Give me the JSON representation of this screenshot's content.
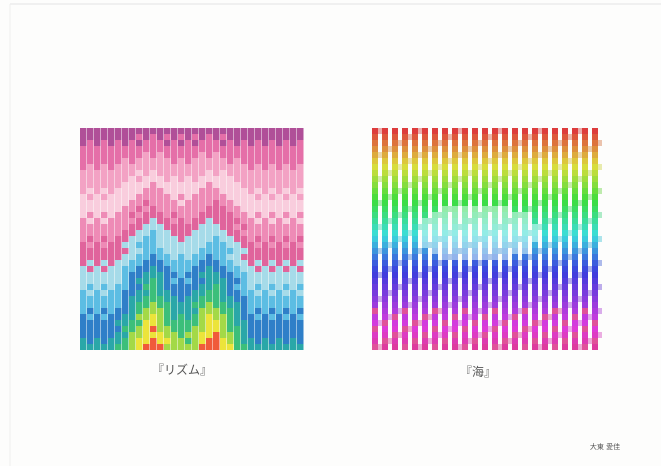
{
  "captions": [
    "『リズム』",
    "『海』"
  ],
  "signature": "大東 愛佳"
}
